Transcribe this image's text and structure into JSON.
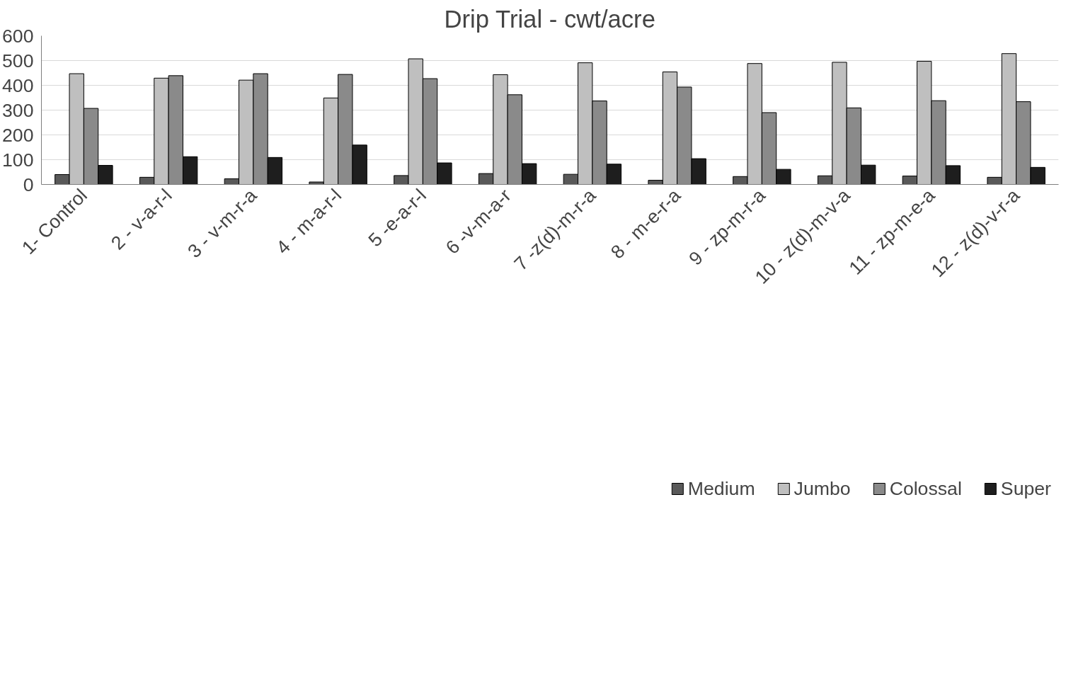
{
  "chart_data": {
    "type": "bar",
    "title": "Drip Trial - cwt/acre",
    "categories": [
      "1- Control",
      "2 - v-a-r-l",
      "3 - v-m-r-a",
      "4 - m-a-r-l",
      "5 -e-a-r-l",
      "6 -v-m-a-r",
      "7 -z(d)-m-r-a",
      "8 - m-e-r-a",
      "9 - zp-m-r-a",
      "10 - z(d)-m-v-a",
      "11 - zp-m-e-a",
      "12 - z(d)-v-r-a"
    ],
    "series": [
      {
        "name": "Medium",
        "color": "#595959",
        "values": [
          40,
          29,
          23,
          10,
          36,
          44,
          41,
          17,
          32,
          35,
          34,
          29
        ]
      },
      {
        "name": "Jumbo",
        "color": "#bfbfbf",
        "values": [
          447,
          429,
          421,
          349,
          507,
          443,
          491,
          454,
          488,
          493,
          497,
          528
        ]
      },
      {
        "name": "Colossal",
        "color": "#8a8a8a",
        "values": [
          307,
          439,
          447,
          444,
          427,
          362,
          337,
          393,
          290,
          309,
          338,
          334
        ]
      },
      {
        "name": "Super",
        "color": "#1e1e1e",
        "values": [
          77,
          112,
          109,
          159,
          87,
          84,
          82,
          104,
          61,
          78,
          76,
          69
        ]
      }
    ],
    "ylim": [
      0,
      600
    ],
    "yticks": [
      0,
      100,
      200,
      300,
      400,
      500,
      600
    ],
    "grid": "y",
    "legend": "bottom"
  }
}
